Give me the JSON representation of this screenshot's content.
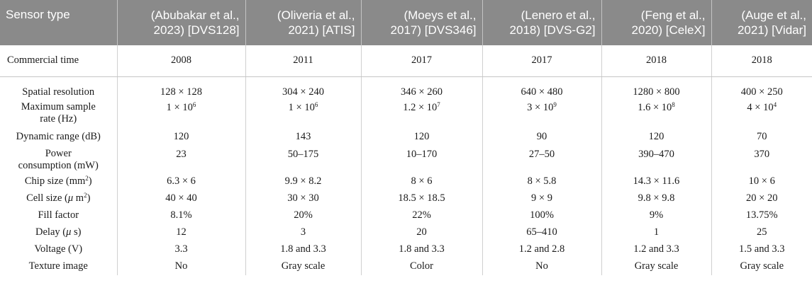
{
  "header": {
    "first": "Sensor type",
    "refs": [
      {
        "line1": "(Abubakar et al.,",
        "line2": "2023) [DVS128]"
      },
      {
        "line1": "(Oliveria et al.,",
        "line2": "2021) [ATIS]"
      },
      {
        "line1": "(Moeys et al.,",
        "line2": "2017) [DVS346]"
      },
      {
        "line1": "(Lenero et al.,",
        "line2": "2018) [DVS-G2]"
      },
      {
        "line1": "(Feng et al.,",
        "line2": "2020) [CeleX]"
      },
      {
        "line1": "(Auge et al.,",
        "line2": "2021) [Vidar]"
      }
    ]
  },
  "commercial": {
    "label": "Commercial time",
    "values": [
      "2008",
      "2011",
      "2017",
      "2017",
      "2018",
      "2018"
    ]
  },
  "rows": {
    "spatial": {
      "label": "Spatial resolution",
      "values": [
        "128 × 128",
        "304 × 240",
        "346 × 260",
        "640 × 480",
        "1280 × 800",
        "400 × 250"
      ]
    },
    "sample": {
      "label_line1": "Maximum sample",
      "label_line2": "rate (Hz)",
      "values": [
        {
          "base": "1 × 10",
          "exp": "6"
        },
        {
          "base": "1 × 10",
          "exp": "6"
        },
        {
          "base": "1.2 × 10",
          "exp": "7"
        },
        {
          "base": "3 × 10",
          "exp": "9"
        },
        {
          "base": "1.6 × 10",
          "exp": "8"
        },
        {
          "base": "4 × 10",
          "exp": "4"
        }
      ]
    },
    "dynamic": {
      "label": "Dynamic range (dB)",
      "values": [
        "120",
        "143",
        "120",
        "90",
        "120",
        "70"
      ]
    },
    "power": {
      "label_line1": "Power",
      "label_line2": "consumption (mW)",
      "values": [
        "23",
        "50–175",
        "10–170",
        "27–50",
        "390–470",
        "370"
      ]
    },
    "chip": {
      "label_pre": "Chip size (mm",
      "label_exp": "2",
      "label_post": ")",
      "values": [
        "6.3 × 6",
        "9.9 × 8.2",
        "8 × 6",
        "8 × 5.8",
        "14.3 × 11.6",
        "10 × 6"
      ]
    },
    "cell": {
      "label_pre": "Cell size (",
      "label_mu": "μ",
      "label_m": " m",
      "label_exp": "2",
      "label_post": ")",
      "values": [
        "40 × 40",
        "30 × 30",
        "18.5 × 18.5",
        "9 × 9",
        "9.8 × 9.8",
        "20 × 20"
      ]
    },
    "fill": {
      "label": "Fill factor",
      "values": [
        "8.1%",
        "20%",
        "22%",
        "100%",
        "9%",
        "13.75%"
      ]
    },
    "delay": {
      "label_pre": "Delay (",
      "label_mu": "μ",
      "label_post": " s)",
      "values": [
        "12",
        "3",
        "20",
        "65–410",
        "1",
        "25"
      ]
    },
    "voltage": {
      "label": "Voltage (V)",
      "values": [
        "3.3",
        "1.8 and 3.3",
        "1.8 and 3.3",
        "1.2 and 2.8",
        "1.2 and 3.3",
        "1.5 and 3.3"
      ]
    },
    "texture": {
      "label": "Texture image",
      "values": [
        "No",
        "Gray scale",
        "Color",
        "No",
        "Gray scale",
        "Gray scale"
      ]
    }
  }
}
